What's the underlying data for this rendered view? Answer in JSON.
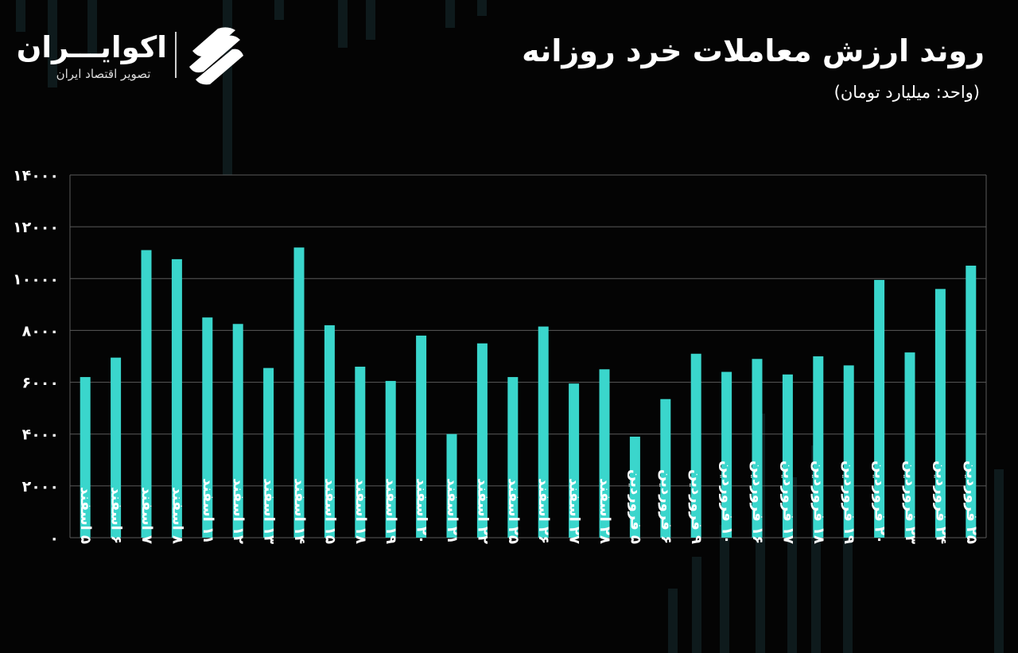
{
  "header": {
    "title": "روند ارزش معاملات خرد روزانه",
    "unit": "(واحد: میلیارد تومان)"
  },
  "logo": {
    "name": "اکوایـــران",
    "tagline": "تصویر اقتصاد ایران",
    "icon": "ecoiran-stripes-icon"
  },
  "colors": {
    "bar": "#3ad6cc",
    "grid": "#5a5a5a",
    "background": "#040404"
  },
  "chart_data": {
    "type": "bar",
    "categories": [
      "۵ اسفند",
      "۶ اسفند",
      "۷ اسفند",
      "۸ اسفند",
      "۱۱ اسفند",
      "۱۲ اسفند",
      "۱۳ اسفند",
      "۱۴ اسفند",
      "۱۵ اسفند",
      "۱۸ اسفند",
      "۱۹ اسفند",
      "۲۰ اسفند",
      "۲۱ اسفند",
      "۲۲ اسفند",
      "۲۵ اسفند",
      "۲۶ اسفند",
      "۲۷ اسفند",
      "۲۸ اسفند",
      "۵ فروردین",
      "۶ فروردین",
      "۹ فروردین",
      "۱۰ فروردین",
      "۱۶ فروردین",
      "۱۷ فروردین",
      "۱۸ فروردین",
      "۱۹ فروردین",
      "۲۰ فروردین",
      "۲۳ فروردین",
      "۲۴ فروردین",
      "۲۵ فروردین"
    ],
    "values": [
      6200,
      6950,
      11100,
      10750,
      8500,
      8250,
      6550,
      11200,
      8200,
      6600,
      6050,
      7800,
      4000,
      7500,
      6200,
      8150,
      5950,
      6500,
      3900,
      5350,
      7100,
      6400,
      6900,
      6300,
      7000,
      6650,
      9950,
      7150,
      9600,
      10500
    ],
    "ylim": [
      0,
      14000
    ],
    "yticks": [
      0,
      2000,
      4000,
      6000,
      8000,
      10000,
      12000,
      14000
    ],
    "ytick_labels": [
      "۰",
      "۲۰۰۰",
      "۴۰۰۰",
      "۶۰۰۰",
      "۸۰۰۰",
      "۱۰۰۰۰",
      "۱۲۰۰۰",
      "۱۴۰۰۰"
    ],
    "grid": true,
    "title": "",
    "xlabel": "",
    "ylabel": ""
  }
}
